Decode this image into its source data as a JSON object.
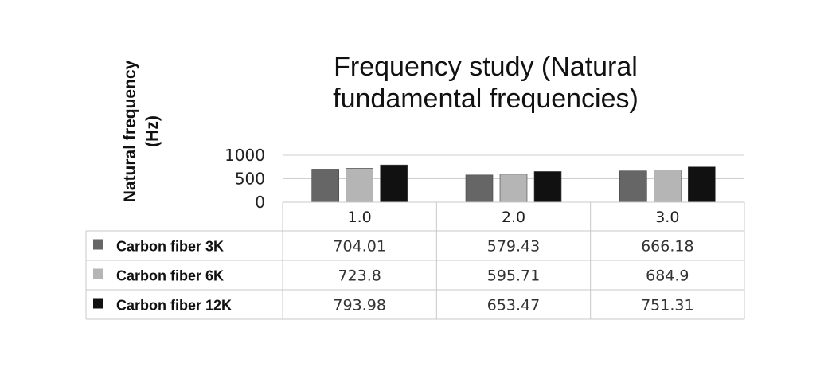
{
  "chart_data": {
    "type": "bar",
    "title": "Frequency study (Natural fundamental frequencies)",
    "ylabel": "Natural frequency (Hz)",
    "xlabel": "",
    "categories": [
      "1.0",
      "2.0",
      "3.0"
    ],
    "yticks": [
      "1000",
      "500",
      "0"
    ],
    "ylim": [
      0,
      1000
    ],
    "grid": true,
    "legend": "data-table-left",
    "series": [
      {
        "name": "Carbon fiber 3K",
        "values": [
          704.01,
          579.43,
          666.18
        ],
        "labels": [
          "704.01",
          "579.43",
          "666.18"
        ],
        "color": "#666666"
      },
      {
        "name": "Carbon fiber 6K",
        "values": [
          723.8,
          595.71,
          684.9
        ],
        "labels": [
          "723.8",
          "595.71",
          "684.9"
        ],
        "color": "#b5b5b5"
      },
      {
        "name": "Carbon fiber 12K",
        "values": [
          793.98,
          653.47,
          751.31
        ],
        "labels": [
          "793.98",
          "653.47",
          "751.31"
        ],
        "color": "#111111"
      }
    ]
  }
}
